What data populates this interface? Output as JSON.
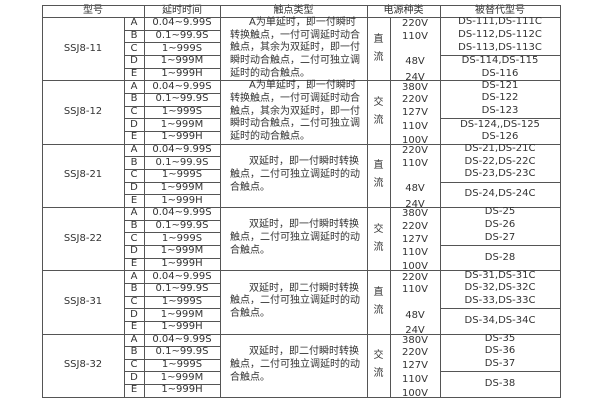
{
  "header": {
    "model": "型号",
    "delay": "延时时间",
    "contact": "触点类型",
    "power": "电源种类",
    "replace": "被替代型号"
  },
  "groups": [
    {
      "model": "SSJ8-11",
      "rows": [
        [
          "A",
          "0.04~9.99S"
        ],
        [
          "B",
          "0.1~99.9S"
        ],
        [
          "C",
          "1~999S"
        ],
        [
          "D",
          "1~999M"
        ],
        [
          "E",
          "1~999H"
        ]
      ],
      "contact_lines": [
        "A为单延时，即一付瞬时",
        "转换触点，一付可调延时动合",
        "触点，其余为双延时，即一付",
        "瞬时动合触点，二付可独立调",
        "延时的动合触点。"
      ],
      "power_type": [
        "直",
        "流"
      ],
      "kind": "dc",
      "voltages": [
        "220V",
        "110V",
        "48V",
        "24V"
      ],
      "replace_top": [
        "DS-111,DS-111C",
        "DS-112,DS-112C",
        "DS-113,DS-113C"
      ],
      "replace_bottom": [
        "DS-114,DS-115",
        "DS-116"
      ]
    },
    {
      "model": "SSJ8-12",
      "rows": [
        [
          "A",
          "0.04~9.99S"
        ],
        [
          "B",
          "0.1~99.9S"
        ],
        [
          "C",
          "1~999S"
        ],
        [
          "D",
          "1~999M"
        ],
        [
          "E",
          "1~999H"
        ]
      ],
      "contact_lines": [
        "A为单延时，即一付瞬时",
        "转换触点，一付可调延时动合",
        "触点，其余为双延时，即一付",
        "瞬时动合触点，二付可独立调",
        "延时的动合触点。"
      ],
      "power_type": [
        "交",
        "流"
      ],
      "kind": "ac",
      "voltages": [
        "380V",
        "220V",
        "127V",
        "110V",
        "100V"
      ],
      "replace_top": [
        "DS-121",
        "DS-122",
        "DS-123"
      ],
      "replace_bottom": [
        "DS-124,,DS-125",
        "DS-126"
      ]
    },
    {
      "model": "SSJ8-21",
      "rows": [
        [
          "A",
          "0.04~9.99S"
        ],
        [
          "B",
          "0.1~99.9S"
        ],
        [
          "C",
          "1~999S"
        ],
        [
          "D",
          "1~999M"
        ],
        [
          "E",
          "1~999H"
        ]
      ],
      "contact_lines": [
        "双延时，即一付瞬时转换",
        "触点，二付可独立调延时的动",
        "合触点。"
      ],
      "power_type": [
        "直",
        "流"
      ],
      "kind": "dc",
      "voltages": [
        "220V",
        "110V",
        "48V",
        "24V"
      ],
      "replace_top": [
        "DS-21,DS-21C",
        "DS-22,DS-22C",
        "DS-23,DS-23C"
      ],
      "replace_bottom": [
        "DS-24,DS-24C"
      ]
    },
    {
      "model": "SSJ8-22",
      "rows": [
        [
          "A",
          "0.04~9.99S"
        ],
        [
          "B",
          "0.1~99.9S"
        ],
        [
          "C",
          "1~999S"
        ],
        [
          "D",
          "1~999M"
        ],
        [
          "E",
          "1~999H"
        ]
      ],
      "contact_lines": [
        "双延时，即一付瞬时转换",
        "触点，二付可独立调延时的动",
        "合触点。"
      ],
      "power_type": [
        "交",
        "流"
      ],
      "kind": "ac",
      "voltages": [
        "380V",
        "220V",
        "127V",
        "110V",
        "100V"
      ],
      "replace_top": [
        "DS-25",
        "DS-26",
        "DS-27"
      ],
      "replace_bottom": [
        "DS-28"
      ]
    },
    {
      "model": "SSJ8-31",
      "rows": [
        [
          "A",
          "0.04~9.99S"
        ],
        [
          "B",
          "0.1~99.9S"
        ],
        [
          "C",
          "1~999S"
        ],
        [
          "D",
          "1~999M"
        ],
        [
          "E",
          "1~999H"
        ]
      ],
      "contact_lines": [
        "双延时，即二付瞬时转换",
        "触点，二付可独立调延时的动",
        "合触点。"
      ],
      "power_type": [
        "直",
        "流"
      ],
      "kind": "dc",
      "voltages": [
        "220V",
        "110V",
        "48V",
        "24V"
      ],
      "replace_top": [
        "DS-31,DS-31C",
        "DS-32,DS-32C",
        "DS-33,DS-33C"
      ],
      "replace_bottom": [
        "DS-34,DS-34C"
      ]
    },
    {
      "model": "SSJ8-32",
      "rows": [
        [
          "A",
          "0.04~9.99S"
        ],
        [
          "B",
          "0.1~99.9S"
        ],
        [
          "C",
          "1~999S"
        ],
        [
          "D",
          "1~999M"
        ],
        [
          "E",
          "1~999H"
        ]
      ],
      "contact_lines": [
        "双延时，即二付瞬时转换",
        "触点，二付可独立调延时的动",
        "合触点。"
      ],
      "power_type": [
        "交",
        "流"
      ],
      "kind": "ac",
      "voltages": [
        "380V",
        "220V",
        "127V",
        "110V",
        "100V"
      ],
      "replace_top": [
        "DS-35",
        "DS-36",
        "DS-37"
      ],
      "replace_bottom": [
        "DS-38"
      ]
    }
  ]
}
